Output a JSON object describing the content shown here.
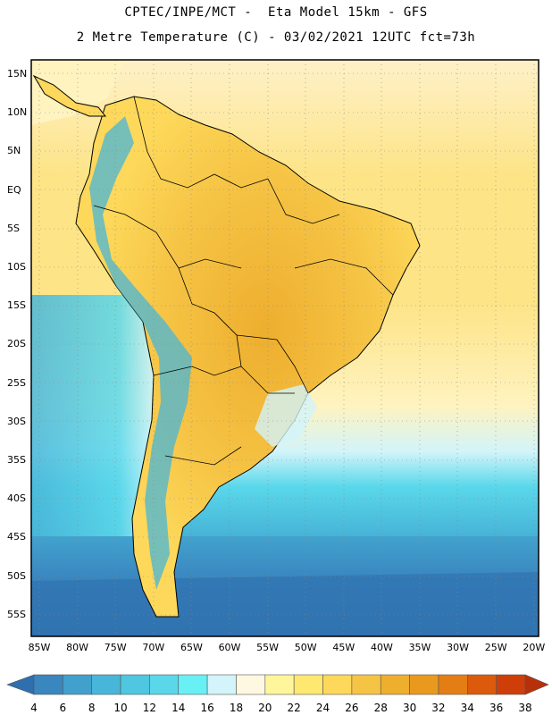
{
  "title_line1": "CPTEC/INPE/MCT -  Eta Model 15km - GFS",
  "title_line2": "2 Metre Temperature (C) - 03/02/2021 12UTC fct=73h",
  "lat_labels": [
    "15N",
    "10N",
    "5N",
    "EQ",
    "5S",
    "10S",
    "15S",
    "20S",
    "25S",
    "30S",
    "35S",
    "40S",
    "45S",
    "50S",
    "55S"
  ],
  "lon_labels": [
    "85W",
    "80W",
    "75W",
    "70W",
    "65W",
    "60W",
    "55W",
    "50W",
    "45W",
    "40W",
    "35W",
    "30W",
    "25W",
    "20W"
  ],
  "colorbar": {
    "labels": [
      "4",
      "6",
      "8",
      "10",
      "12",
      "14",
      "16",
      "18",
      "20",
      "22",
      "24",
      "26",
      "28",
      "30",
      "32",
      "34",
      "36",
      "38"
    ],
    "colors": [
      "#2f6fad",
      "#3a86bf",
      "#41a0cc",
      "#48b6d8",
      "#4fc7e0",
      "#5ad8ea",
      "#68f0f5",
      "#d2f4fa",
      "#fff8e0",
      "#fff59a",
      "#ffe870",
      "#fdd85a",
      "#f6c445",
      "#eeae2e",
      "#e99a1e",
      "#e47e14",
      "#dc5a0c",
      "#cf3e08",
      "#b8300a"
    ]
  }
}
